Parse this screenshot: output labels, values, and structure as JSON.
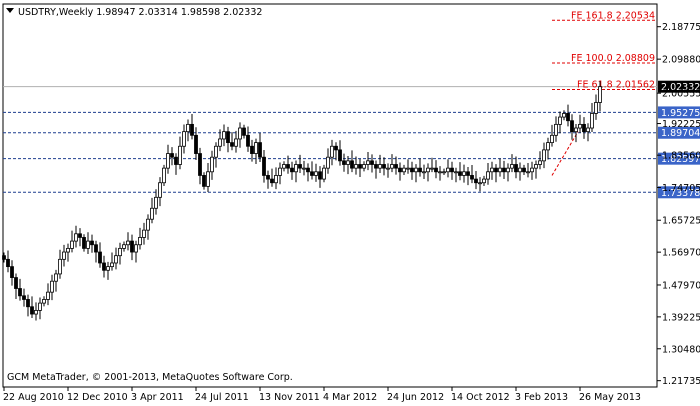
{
  "window": {
    "symbol_header": "USDTRY,Weekly  1.98947 2.03314 1.98598 2.02332",
    "copyright": "GCM MetaTrader, © 2001-2013, MetaQuotes Software Corp."
  },
  "colors": {
    "background": "#ffffff",
    "axis": "#000000",
    "candle_up_body": "#ffffff",
    "candle_down_body": "#000000",
    "level_line": "#1f3f8f",
    "level_label_bg": "#3a64c8",
    "fib_line": "#e00000",
    "fib_text": "#e00000",
    "current_price_bg": "#000000",
    "current_price_line": "#b0b0b0"
  },
  "chart_data": {
    "type": "candlestick",
    "symbol": "USDTRY",
    "timeframe": "Weekly",
    "last_bar": {
      "open": 1.98947,
      "high": 2.03314,
      "low": 1.98598,
      "close": 2.02332
    },
    "ylim": [
      1.2,
      2.25
    ],
    "y_ticks": [
      "2.18775",
      "2.09880",
      "2.00555",
      "1.92225",
      "1.83560",
      "1.74705",
      "1.65725",
      "1.56970",
      "1.47970",
      "1.39225",
      "1.30480",
      "1.21735"
    ],
    "y_tick_values": [
      2.18775,
      2.0988,
      2.00555,
      1.92225,
      1.8356,
      1.74705,
      1.65725,
      1.5697,
      1.4797,
      1.39225,
      1.3048,
      1.21735
    ],
    "x_ticks": [
      "22 Aug 2010",
      "12 Dec 2010",
      "3 Apr 2011",
      "24 Jul 2011",
      "13 Nov 2011",
      "4 Mar 2012",
      "24 Jun 2012",
      "14 Oct 2012",
      "3 Feb 2013",
      "26 May 2013"
    ],
    "x_tick_bars": [
      0,
      16,
      32,
      48,
      64,
      80,
      96,
      112,
      128,
      144
    ],
    "levels": [
      {
        "value": 1.95275,
        "label": "1.95275"
      },
      {
        "value": 1.89704,
        "label": "1.89704"
      },
      {
        "value": 1.82597,
        "label": "1.82597"
      },
      {
        "value": 1.73378,
        "label": "1.73378"
      }
    ],
    "fib_extensions": [
      {
        "label": "FE 161.8 2.20534",
        "value": 2.20534
      },
      {
        "label": "FE 100.0 2.08809",
        "value": 2.08809
      },
      {
        "label": "FE 61.8 2.01562",
        "value": 2.01562
      }
    ],
    "current_price": {
      "value": 2.02332,
      "label": "2.02332"
    },
    "closes": [
      1.55,
      1.53,
      1.5,
      1.47,
      1.45,
      1.44,
      1.42,
      1.4,
      1.41,
      1.43,
      1.44,
      1.46,
      1.49,
      1.51,
      1.55,
      1.57,
      1.58,
      1.6,
      1.62,
      1.61,
      1.58,
      1.6,
      1.59,
      1.57,
      1.54,
      1.52,
      1.53,
      1.54,
      1.56,
      1.58,
      1.59,
      1.6,
      1.57,
      1.59,
      1.61,
      1.63,
      1.66,
      1.69,
      1.72,
      1.76,
      1.8,
      1.84,
      1.83,
      1.81,
      1.86,
      1.9,
      1.92,
      1.89,
      1.84,
      1.78,
      1.75,
      1.79,
      1.83,
      1.86,
      1.88,
      1.9,
      1.87,
      1.86,
      1.88,
      1.91,
      1.89,
      1.86,
      1.84,
      1.87,
      1.83,
      1.78,
      1.77,
      1.76,
      1.78,
      1.8,
      1.81,
      1.8,
      1.79,
      1.81,
      1.8,
      1.8,
      1.79,
      1.78,
      1.79,
      1.77,
      1.8,
      1.83,
      1.86,
      1.85,
      1.82,
      1.81,
      1.82,
      1.8,
      1.81,
      1.8,
      1.81,
      1.82,
      1.81,
      1.8,
      1.81,
      1.8,
      1.8,
      1.81,
      1.8,
      1.79,
      1.8,
      1.8,
      1.79,
      1.8,
      1.79,
      1.79,
      1.8,
      1.8,
      1.79,
      1.79,
      1.79,
      1.8,
      1.79,
      1.79,
      1.78,
      1.79,
      1.78,
      1.77,
      1.76,
      1.76,
      1.77,
      1.79,
      1.8,
      1.79,
      1.8,
      1.79,
      1.8,
      1.81,
      1.79,
      1.8,
      1.79,
      1.79,
      1.8,
      1.81,
      1.82,
      1.85,
      1.87,
      1.89,
      1.92,
      1.94,
      1.95,
      1.93,
      1.9,
      1.91,
      1.92,
      1.9,
      1.91,
      1.95,
      1.98,
      2.02332
    ],
    "wick": 0.022
  }
}
